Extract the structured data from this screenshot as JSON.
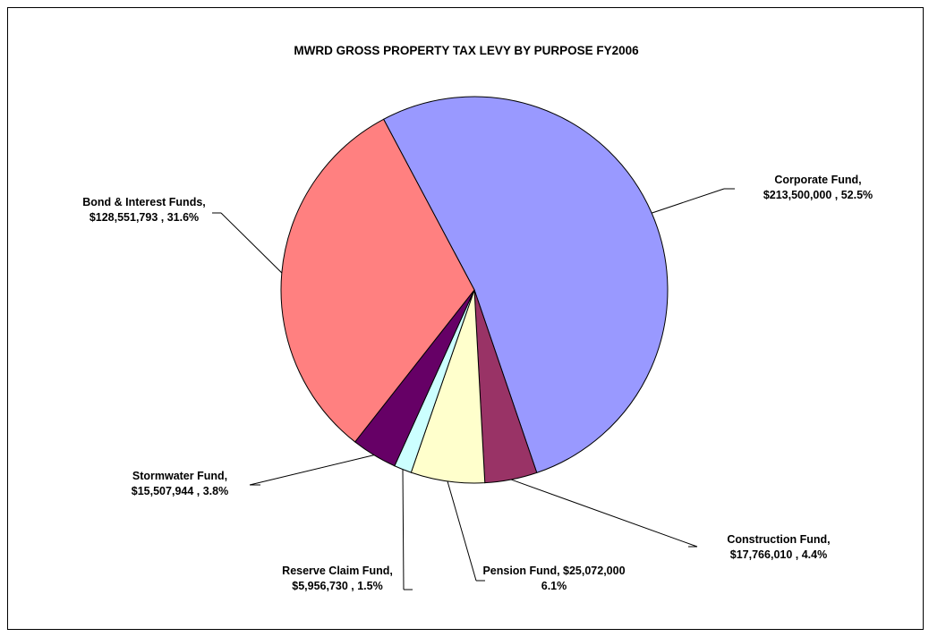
{
  "chart_data": {
    "type": "pie",
    "title": "MWRD GROSS PROPERTY TAX LEVY BY PURPOSE FY2006",
    "slices": [
      {
        "name": "Corporate Fund",
        "value": 213500000,
        "percent": "52.5%",
        "color": "#9999FF",
        "label_lines": [
          "Corporate Fund,",
          "$213,500,000 , 52.5%"
        ]
      },
      {
        "name": "Construction Fund",
        "value": 17766010,
        "percent": "4.4%",
        "color": "#993366",
        "label_lines": [
          "Construction Fund,",
          "$17,766,010 , 4.4%"
        ]
      },
      {
        "name": "Pension Fund",
        "value": 25072000,
        "percent": "6.1%",
        "color": "#FFFFCC",
        "label_lines": [
          "Pension Fund,  $25,072,000",
          "6.1%"
        ]
      },
      {
        "name": "Reserve Claim Fund",
        "value": 5956730,
        "percent": "1.5%",
        "color": "#CCFFFF",
        "label_lines": [
          "Reserve Claim Fund,",
          "$5,956,730 , 1.5%"
        ]
      },
      {
        "name": "Stormwater Fund",
        "value": 15507944,
        "percent": "3.8%",
        "color": "#660066",
        "label_lines": [
          "Stormwater Fund,",
          "$15,507,944 , 3.8%"
        ]
      },
      {
        "name": "Bond & Interest Funds",
        "value": 128551793,
        "percent": "31.6%",
        "color": "#FF8080",
        "label_lines": [
          "Bond & Interest Funds,",
          "$128,551,793 , 31.6%"
        ]
      }
    ],
    "start_angle_deg": -28,
    "direction": "clockwise",
    "legend": "none"
  }
}
